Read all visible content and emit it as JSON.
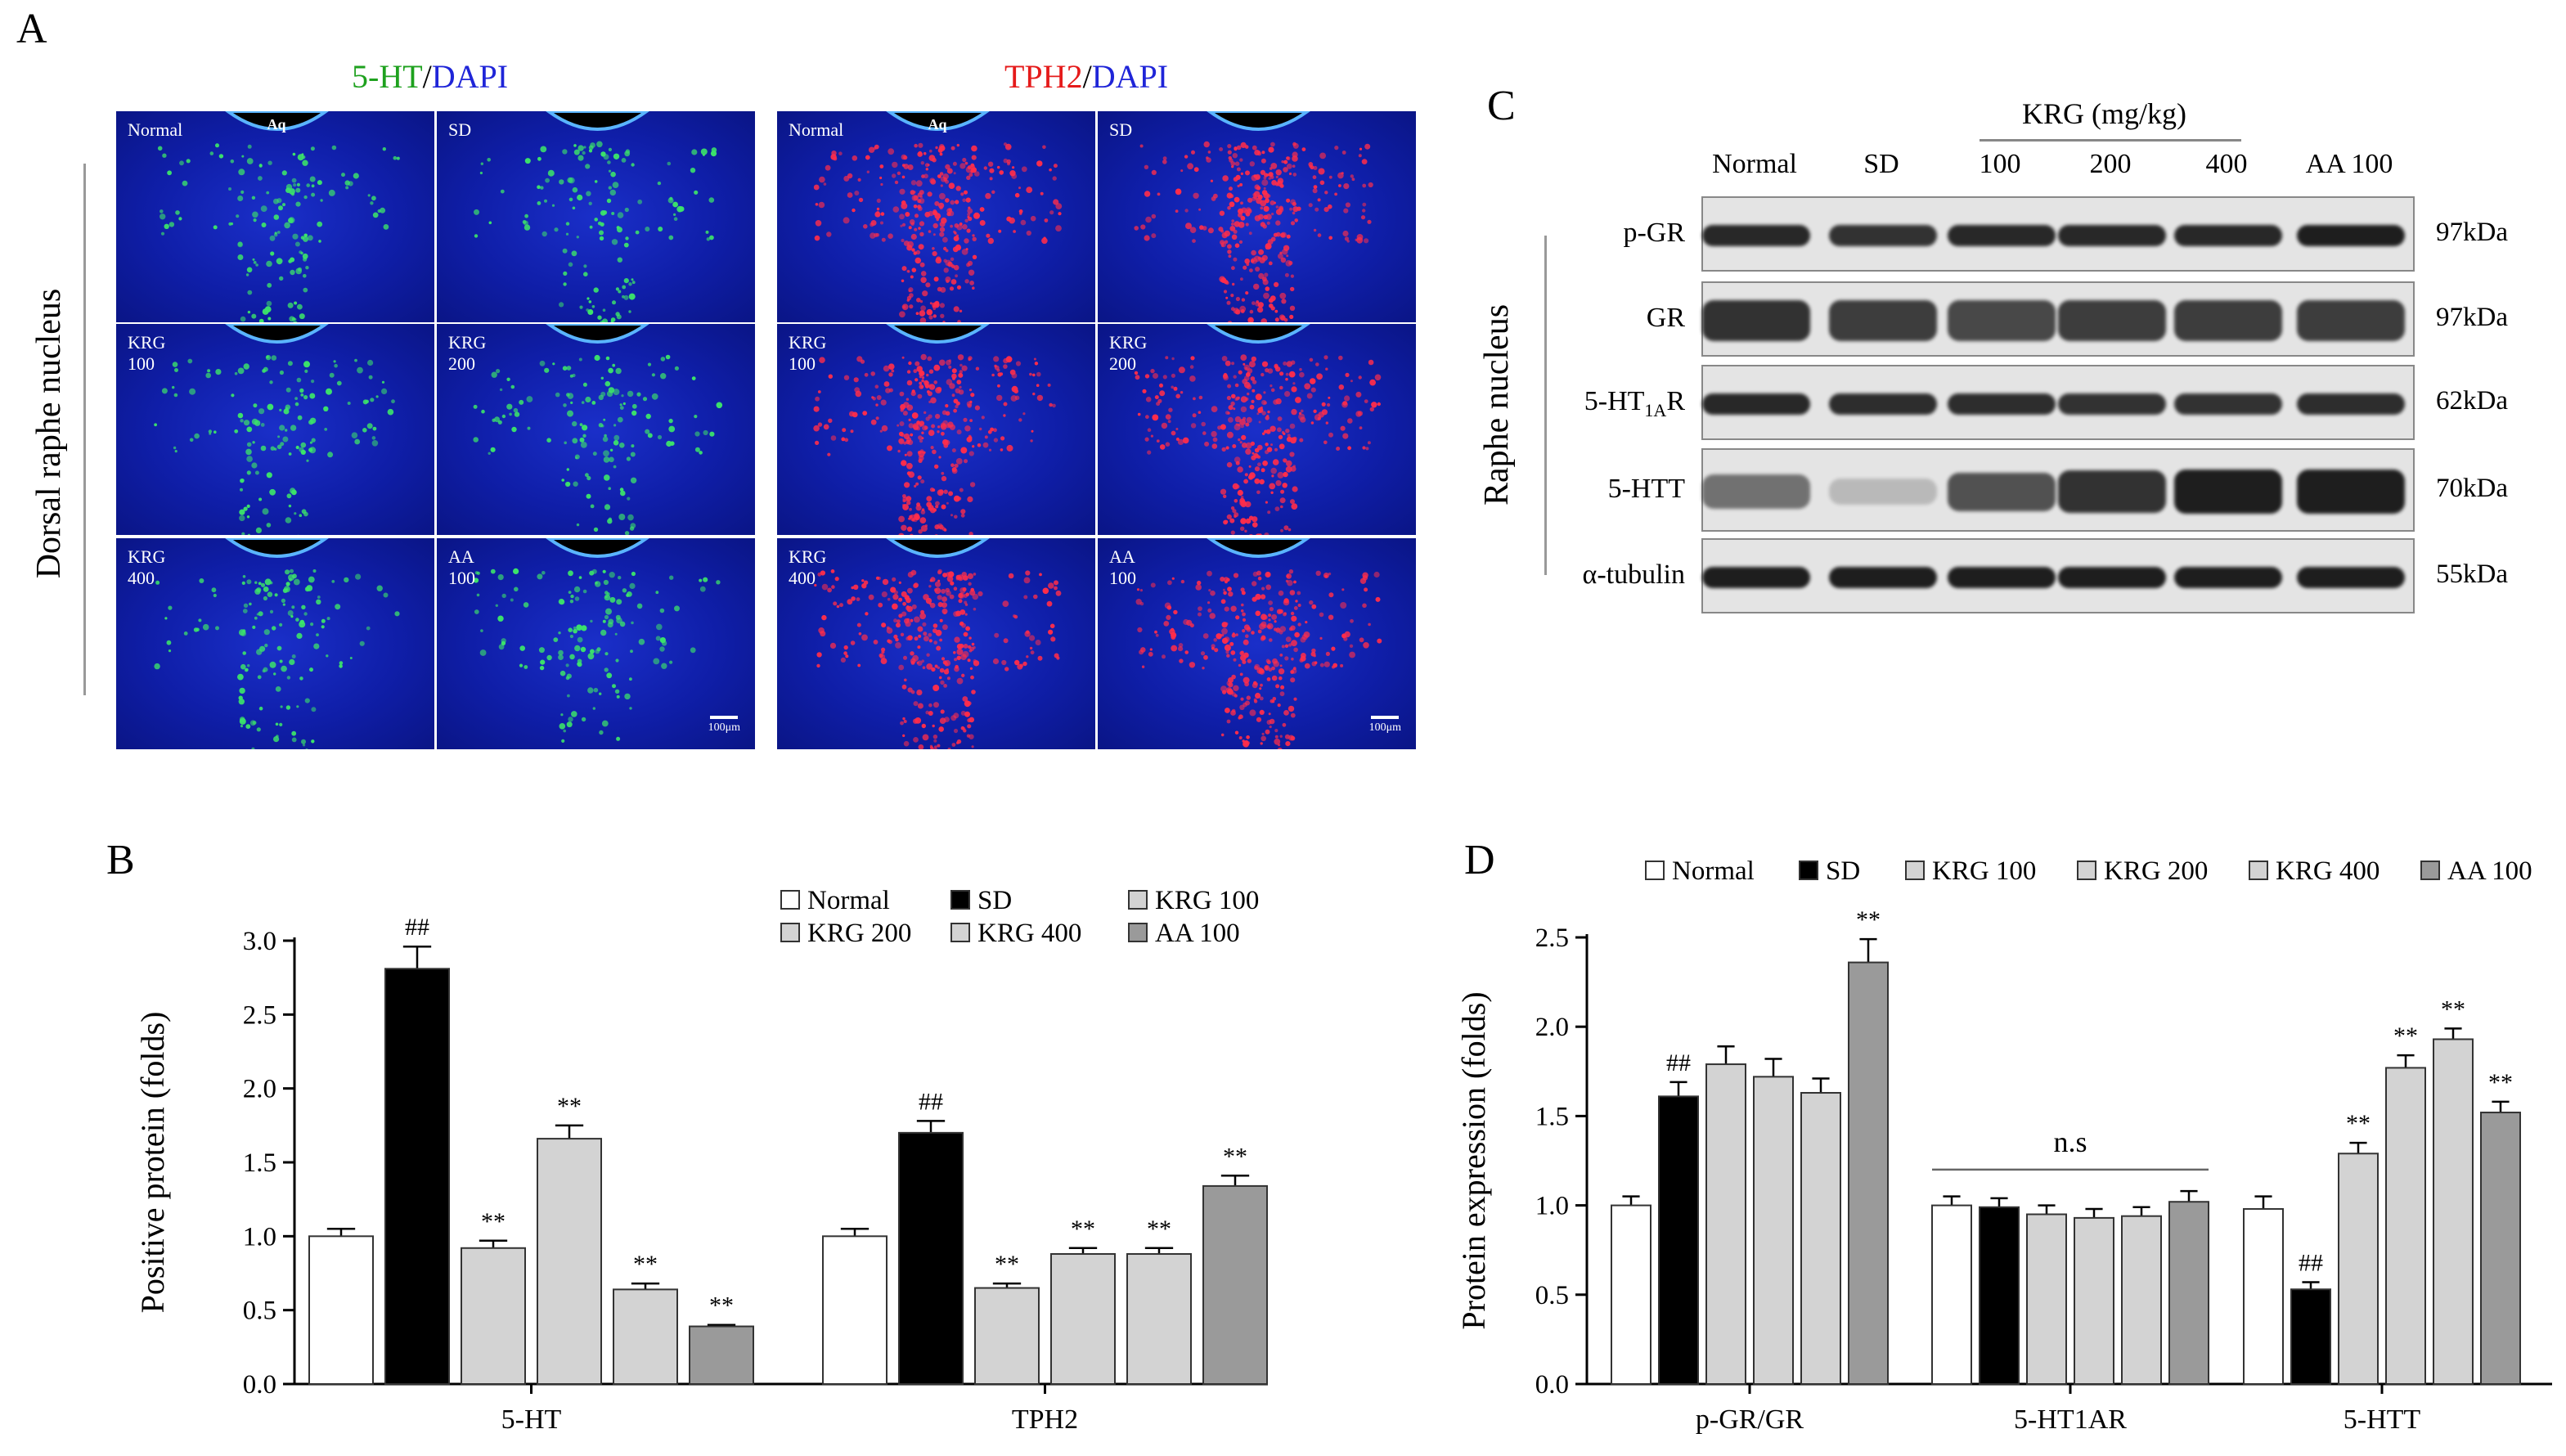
{
  "panel_a": {
    "label": "A",
    "titles": [
      {
        "left": "5-HT",
        "sep": "/",
        "right": "DAPI"
      },
      {
        "left": "TPH2",
        "sep": "/",
        "right": "DAPI"
      }
    ],
    "side_label": "Dorsal raphe nucleus",
    "aq_label": "Aq",
    "scale_label": "100μm",
    "group_labels": [
      "Normal",
      "SD",
      "KRG\n100",
      "KRG\n200",
      "KRG\n400",
      "AA\n100"
    ]
  },
  "panel_b": {
    "label": "B"
  },
  "panel_c": {
    "label": "C",
    "header": "KRG (mg/kg)",
    "lanes": [
      "Normal",
      "SD",
      "100",
      "200",
      "400",
      "AA 100"
    ],
    "side_label": "Raphe nucleus",
    "rows": [
      {
        "name": "p-GR",
        "kda": "97kDa"
      },
      {
        "name": "GR",
        "kda": "97kDa"
      },
      {
        "name": "5-HT1AR",
        "kda": "62kDa"
      },
      {
        "name": "5-HTT",
        "kda": "70kDa"
      },
      {
        "name": "α-tubulin",
        "kda": "55kDa"
      }
    ],
    "row_5ht1ar": {
      "main": "5-HT",
      "sub": "1A",
      "tail": "R"
    },
    "band_intensity": {
      "p-GR": [
        0.9,
        0.85,
        0.9,
        0.9,
        0.9,
        0.95
      ],
      "GR": [
        0.85,
        0.8,
        0.75,
        0.8,
        0.8,
        0.8
      ],
      "5-HT1AR": [
        0.9,
        0.88,
        0.88,
        0.85,
        0.85,
        0.88
      ],
      "5-HTT": [
        0.55,
        0.2,
        0.7,
        0.85,
        0.95,
        0.95
      ],
      "α-tubulin": [
        0.95,
        0.95,
        0.95,
        0.95,
        0.95,
        0.95
      ]
    }
  },
  "panel_d": {
    "label": "D"
  },
  "chart_data": [
    {
      "type": "bar",
      "panel": "B",
      "ylabel": "Positive protein (folds)",
      "ylim": [
        0,
        3.0
      ],
      "yticks": [
        "0.0",
        "0.5",
        "1.0",
        "1.5",
        "2.0",
        "2.5",
        "3.0"
      ],
      "legend": [
        "Normal",
        "SD",
        "KRG 100",
        "KRG 200",
        "KRG 400",
        "AA 100"
      ],
      "legend_placement": "top-right",
      "colors": [
        "#ffffff",
        "#000000",
        "#d3d3d3",
        "#d3d3d3",
        "#d3d3d3",
        "#9a9a9a"
      ],
      "categories": [
        "5-HT",
        "TPH2"
      ],
      "series": [
        {
          "name": "Normal",
          "values": [
            1.0,
            1.0
          ],
          "errors": [
            0.05,
            0.05
          ],
          "annotations": [
            "",
            ""
          ]
        },
        {
          "name": "SD",
          "values": [
            2.81,
            1.7
          ],
          "errors": [
            0.15,
            0.08
          ],
          "annotations": [
            "##",
            "##"
          ]
        },
        {
          "name": "KRG 100",
          "values": [
            0.92,
            0.65
          ],
          "errors": [
            0.05,
            0.03
          ],
          "annotations": [
            "**",
            "**"
          ]
        },
        {
          "name": "KRG 200",
          "values": [
            1.66,
            0.88
          ],
          "errors": [
            0.09,
            0.04
          ],
          "annotations": [
            "**",
            "**"
          ]
        },
        {
          "name": "KRG 400",
          "values": [
            0.64,
            0.88
          ],
          "errors": [
            0.04,
            0.04
          ],
          "annotations": [
            "**",
            "**"
          ]
        },
        {
          "name": "AA 100",
          "values": [
            0.39,
            1.34
          ],
          "errors": [
            0.01,
            0.07
          ],
          "annotations": [
            "**",
            "**"
          ]
        }
      ]
    },
    {
      "type": "bar",
      "panel": "D",
      "ylabel": "Protein expression (folds)",
      "ylim": [
        0,
        2.5
      ],
      "yticks": [
        "0.0",
        "0.5",
        "1.0",
        "1.5",
        "2.0",
        "2.5"
      ],
      "legend": [
        "Normal",
        "SD",
        "KRG 100",
        "KRG 200",
        "KRG 400",
        "AA 100"
      ],
      "legend_placement": "top",
      "colors": [
        "#ffffff",
        "#000000",
        "#d3d3d3",
        "#d3d3d3",
        "#d3d3d3",
        "#9a9a9a"
      ],
      "categories": [
        "p-GR/GR",
        "5-HT1AR",
        "5-HTT"
      ],
      "group_annotation": {
        "category": "5-HT1AR",
        "text": "n.s"
      },
      "series": [
        {
          "name": "Normal",
          "values": [
            1.0,
            1.0,
            0.98
          ],
          "errors": [
            0.05,
            0.05,
            0.07
          ],
          "annotations": [
            "",
            "",
            ""
          ]
        },
        {
          "name": "SD",
          "values": [
            1.61,
            0.99,
            0.53
          ],
          "errors": [
            0.08,
            0.05,
            0.04
          ],
          "annotations": [
            "##",
            "",
            "##"
          ]
        },
        {
          "name": "KRG 100",
          "values": [
            1.79,
            0.95,
            1.29
          ],
          "errors": [
            0.1,
            0.05,
            0.06
          ],
          "annotations": [
            "",
            "",
            "**"
          ]
        },
        {
          "name": "KRG 200",
          "values": [
            1.72,
            0.93,
            1.77
          ],
          "errors": [
            0.1,
            0.05,
            0.07
          ],
          "annotations": [
            "",
            "",
            "**"
          ]
        },
        {
          "name": "KRG 400",
          "values": [
            1.63,
            0.94,
            1.93
          ],
          "errors": [
            0.08,
            0.05,
            0.06
          ],
          "annotations": [
            "",
            "",
            "**"
          ]
        },
        {
          "name": "AA 100",
          "values": [
            2.36,
            1.02,
            1.52
          ],
          "errors": [
            0.13,
            0.06,
            0.06
          ],
          "annotations": [
            "**",
            "",
            "**"
          ]
        }
      ]
    }
  ]
}
